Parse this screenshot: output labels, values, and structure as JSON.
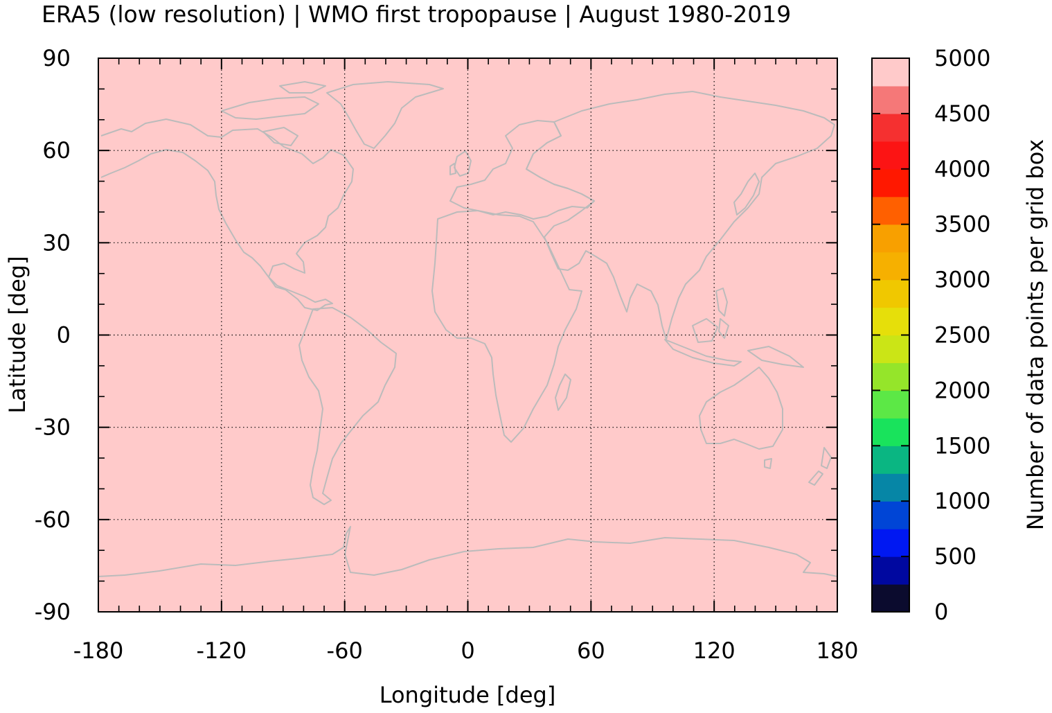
{
  "title": "ERA5 (low resolution) | WMO first tropopause | August 1980-2019",
  "chart_data": {
    "type": "heatmap",
    "title": "ERA5 (low resolution) | WMO first tropopause | August 1980-2019",
    "xlabel": "Longitude [deg]",
    "ylabel": "Latitude [deg]",
    "xlim": [
      -180,
      180
    ],
    "ylim": [
      -90,
      90
    ],
    "x_ticks": [
      -180,
      -120,
      -60,
      0,
      60,
      120,
      180
    ],
    "y_ticks": [
      -90,
      -60,
      -30,
      0,
      30,
      60,
      90
    ],
    "grid": true,
    "uniform_value": 5000,
    "field_color": "#ffcaca",
    "coastline_color": "#bbbbbb",
    "colorbar": {
      "label": "Number of data points per grid box",
      "min": 0,
      "max": 5000,
      "ticks": [
        0,
        500,
        1000,
        1500,
        2000,
        2500,
        3000,
        3500,
        4000,
        4500,
        5000
      ],
      "colors": [
        "#0b0b2e",
        "#0008a0",
        "#0018f2",
        "#0045d6",
        "#0686a6",
        "#0ab682",
        "#19e35c",
        "#5ce846",
        "#95e52a",
        "#cbe516",
        "#e6df0a",
        "#f0c800",
        "#f6b000",
        "#f8a000",
        "#ff6000",
        "#ff1800",
        "#fc1414",
        "#f53030",
        "#f57878",
        "#ffcaca"
      ]
    }
  }
}
